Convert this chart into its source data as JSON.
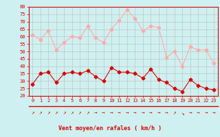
{
  "x": [
    0,
    1,
    2,
    3,
    4,
    5,
    6,
    7,
    8,
    9,
    10,
    11,
    12,
    13,
    14,
    15,
    16,
    17,
    18,
    19,
    20,
    21,
    22,
    23
  ],
  "wind_avg": [
    28,
    35,
    36,
    29,
    35,
    36,
    35,
    37,
    33,
    30,
    39,
    36,
    36,
    35,
    32,
    38,
    31,
    29,
    25,
    23,
    31,
    27,
    25,
    24
  ],
  "wind_gust": [
    61,
    58,
    64,
    51,
    56,
    60,
    59,
    67,
    59,
    56,
    65,
    71,
    78,
    72,
    64,
    67,
    66,
    46,
    50,
    40,
    53,
    51,
    51,
    42
  ],
  "ylim": [
    20,
    80
  ],
  "yticks": [
    20,
    25,
    30,
    35,
    40,
    45,
    50,
    55,
    60,
    65,
    70,
    75,
    80
  ],
  "xlabel": "Vent moyen/en rafales ( km/h )",
  "bg_color": "#cff0f0",
  "grid_color": "#bbbbbb",
  "line_avg_color": "#dd0000",
  "line_gust_color": "#ffaaaa",
  "arrows": [
    "↗",
    "↗",
    "↗",
    "↗",
    "↗",
    "↗",
    "↗",
    "↗",
    "→",
    "→",
    "→",
    "→",
    "→",
    "→",
    "→",
    "→",
    "→",
    "→",
    "↗",
    "↘",
    "→",
    "→",
    "→",
    "→"
  ]
}
